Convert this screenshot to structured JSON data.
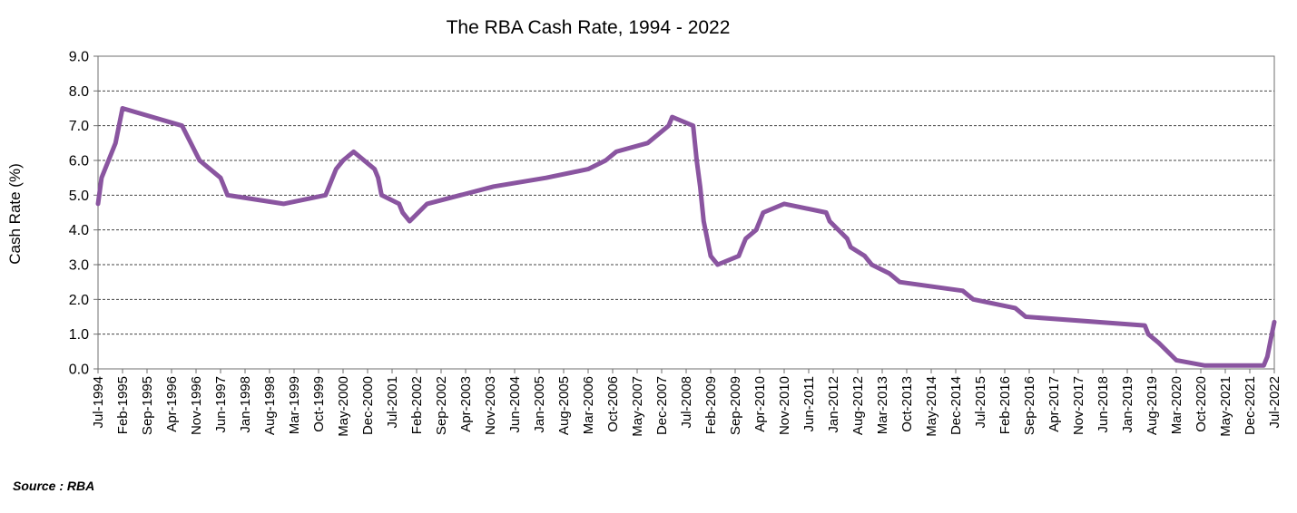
{
  "chart_data": {
    "type": "line",
    "title": "The RBA Cash Rate, 1994 - 2022",
    "xlabel": "",
    "ylabel": "Cash Rate (%)",
    "ylim": [
      0,
      9
    ],
    "yticks": [
      "0.0",
      "1.0",
      "2.0",
      "3.0",
      "4.0",
      "5.0",
      "6.0",
      "7.0",
      "8.0",
      "9.0"
    ],
    "grid": "horizontal dashed",
    "series_color": "#8a55a0",
    "x_tick_labels": [
      "Jul-1994",
      "Feb-1995",
      "Sep-1995",
      "Apr-1996",
      "Nov-1996",
      "Jun-1997",
      "Jan-1998",
      "Aug-1998",
      "Mar-1999",
      "Oct-1999",
      "May-2000",
      "Dec-2000",
      "Jul-2001",
      "Feb-2002",
      "Sep-2002",
      "Apr-2003",
      "Nov-2003",
      "Jun-2004",
      "Jan-2005",
      "Aug-2005",
      "Mar-2006",
      "Oct-2006",
      "May-2007",
      "Dec-2007",
      "Jul-2008",
      "Feb-2009",
      "Sep-2009",
      "Apr-2010",
      "Nov-2010",
      "Jun-2011",
      "Jan-2012",
      "Aug-2012",
      "Mar-2013",
      "Oct-2013",
      "May-2014",
      "Dec-2014",
      "Jul-2015",
      "Feb-2016",
      "Sep-2016",
      "Apr-2017",
      "Nov-2017",
      "Jun-2018",
      "Jan-2019",
      "Aug-2019",
      "Mar-2020",
      "Oct-2020",
      "May-2021",
      "Dec-2021",
      "Jul-2022"
    ],
    "series": [
      {
        "name": "RBA Cash Rate",
        "x": [
          "Jul-1994",
          "Aug-1994",
          "Oct-1994",
          "Dec-1994",
          "Jan-1995",
          "Feb-1995",
          "Jul-1996",
          "Dec-1996",
          "Jun-1997",
          "Jul-1997",
          "Aug-1997",
          "Dec-1998",
          "Dec-1999",
          "Feb-2000",
          "Mar-2000",
          "May-2000",
          "Aug-2000",
          "Feb-2001",
          "Mar-2001",
          "Apr-2001",
          "Sep-2001",
          "Oct-2001",
          "Dec-2001",
          "May-2002",
          "Dec-2003",
          "Mar-2005",
          "Mar-2006",
          "Aug-2006",
          "Nov-2006",
          "Aug-2007",
          "Nov-2007",
          "Feb-2008",
          "Mar-2008",
          "Sep-2008",
          "Oct-2008",
          "Nov-2008",
          "Dec-2008",
          "Feb-2009",
          "Apr-2009",
          "Oct-2009",
          "Nov-2009",
          "Dec-2009",
          "Mar-2010",
          "Apr-2010",
          "May-2010",
          "Nov-2010",
          "Nov-2011",
          "Dec-2011",
          "May-2012",
          "Jun-2012",
          "Oct-2012",
          "Dec-2012",
          "May-2013",
          "Aug-2013",
          "Feb-2015",
          "May-2015",
          "May-2016",
          "Aug-2016",
          "Jun-2019",
          "Jul-2019",
          "Oct-2019",
          "Mar-2020",
          "Nov-2020",
          "Apr-2022",
          "May-2022",
          "Jun-2022",
          "Jul-2022"
        ],
        "values": [
          4.75,
          5.5,
          6.0,
          6.5,
          7.0,
          7.5,
          7.0,
          6.0,
          5.5,
          5.25,
          5.0,
          4.75,
          5.0,
          5.5,
          5.75,
          6.0,
          6.25,
          5.75,
          5.5,
          5.0,
          4.75,
          4.5,
          4.25,
          4.75,
          5.25,
          5.5,
          5.75,
          6.0,
          6.25,
          6.5,
          6.75,
          7.0,
          7.25,
          7.0,
          6.0,
          5.25,
          4.25,
          3.25,
          3.0,
          3.25,
          3.5,
          3.75,
          4.0,
          4.25,
          4.5,
          4.75,
          4.5,
          4.25,
          3.75,
          3.5,
          3.25,
          3.0,
          2.75,
          2.5,
          2.25,
          2.0,
          1.75,
          1.5,
          1.25,
          1.0,
          0.75,
          0.25,
          0.1,
          0.1,
          0.35,
          0.85,
          1.35
        ]
      }
    ]
  },
  "footer": {
    "source": "Source : RBA"
  }
}
